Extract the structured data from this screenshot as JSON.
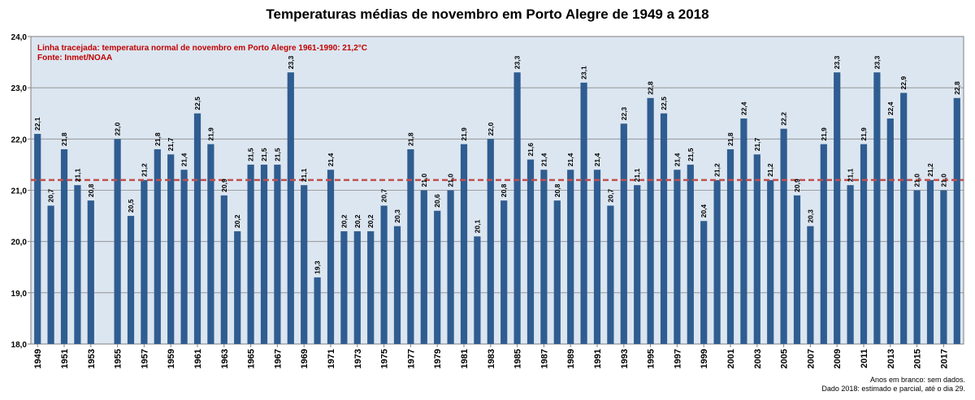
{
  "chart_data": {
    "type": "bar",
    "title": "Temperaturas médias de novembro em Porto Alegre de 1949 a 2018",
    "annotation_lines": [
      "Linha tracejada: temperatura normal de novembro em Porto Alegre 1961-1990: 21,2°C",
      "Fonte: Inmet/NOAA"
    ],
    "footnote_lines": [
      "Anos em branco: sem dados.",
      "Dado 2018: estimado e parcial, até o dia 29."
    ],
    "reference_line": {
      "value": 21.2,
      "style": "dashed",
      "color": "#c0504d"
    },
    "ylim": [
      18,
      24
    ],
    "yticks": [
      18,
      19,
      20,
      21,
      22,
      23,
      24
    ],
    "ytick_labels": [
      "18,0",
      "19,0",
      "20,0",
      "21,0",
      "22,0",
      "23,0",
      "24,0"
    ],
    "grid": true,
    "bar_color": "#2f5d91",
    "plot_background": "#dce6f0",
    "annotation_color": "#c00000",
    "x": [
      1949,
      1950,
      1951,
      1952,
      1953,
      1954,
      1955,
      1956,
      1957,
      1958,
      1959,
      1960,
      1961,
      1962,
      1963,
      1964,
      1965,
      1966,
      1967,
      1968,
      1969,
      1970,
      1971,
      1972,
      1973,
      1974,
      1975,
      1976,
      1977,
      1978,
      1979,
      1980,
      1981,
      1982,
      1983,
      1984,
      1985,
      1986,
      1987,
      1988,
      1989,
      1990,
      1991,
      1992,
      1993,
      1994,
      1995,
      1996,
      1997,
      1998,
      1999,
      2000,
      2001,
      2002,
      2003,
      2004,
      2005,
      2006,
      2007,
      2008,
      2009,
      2010,
      2011,
      2012,
      2013,
      2014,
      2015,
      2016,
      2017,
      2018
    ],
    "x_tick_labels": [
      "1949",
      "1951",
      "1953",
      "1955",
      "1957",
      "1959",
      "1961",
      "1963",
      "1965",
      "1967",
      "1969",
      "1971",
      "1973",
      "1975",
      "1977",
      "1979",
      "1981",
      "1983",
      "1985",
      "1987",
      "1989",
      "1991",
      "1993",
      "1995",
      "1997",
      "1999",
      "2001",
      "2003",
      "2005",
      "2007",
      "2009",
      "2011",
      "2013",
      "2015",
      "2017"
    ],
    "values": [
      22.1,
      20.7,
      21.8,
      21.1,
      20.8,
      null,
      22.0,
      20.5,
      21.2,
      21.8,
      21.7,
      21.4,
      22.5,
      21.9,
      20.9,
      20.2,
      21.5,
      21.5,
      21.5,
      23.3,
      21.1,
      19.3,
      21.4,
      20.2,
      20.2,
      20.2,
      20.7,
      20.3,
      21.8,
      21.0,
      20.6,
      21.0,
      21.9,
      20.1,
      22.0,
      20.8,
      23.3,
      21.6,
      21.4,
      20.8,
      21.4,
      23.1,
      21.4,
      20.7,
      22.3,
      21.1,
      22.8,
      22.5,
      21.4,
      21.5,
      20.4,
      21.2,
      21.8,
      22.4,
      21.7,
      21.2,
      22.2,
      20.9,
      20.3,
      21.9,
      23.3,
      21.1,
      21.9,
      23.3,
      22.4,
      22.9,
      21.0,
      21.2,
      21.0,
      22.8
    ],
    "value_labels": [
      "22,1",
      "20,7",
      "21,8",
      "21,1",
      "20,8",
      "",
      "22,0",
      "20,5",
      "21,2",
      "21,8",
      "21,7",
      "21,4",
      "22,5",
      "21,9",
      "20,9",
      "20,2",
      "21,5",
      "21,5",
      "21,5",
      "23,3",
      "21,1",
      "19,3",
      "21,4",
      "20,2",
      "20,2",
      "20,2",
      "20,7",
      "20,3",
      "21,8",
      "21,0",
      "20,6",
      "21,0",
      "21,9",
      "20,1",
      "22,0",
      "20,8",
      "23,3",
      "21,6",
      "21,4",
      "20,8",
      "21,4",
      "23,1",
      "21,4",
      "20,7",
      "22,3",
      "21,1",
      "22,8",
      "22,5",
      "21,4",
      "21,5",
      "20,4",
      "21,2",
      "21,8",
      "22,4",
      "21,7",
      "21,2",
      "22,2",
      "20,9",
      "20,3",
      "21,9",
      "23,3",
      "21,1",
      "21,9",
      "23,3",
      "22,4",
      "22,9",
      "21,0",
      "21,2",
      "21,0",
      "22,8"
    ]
  }
}
